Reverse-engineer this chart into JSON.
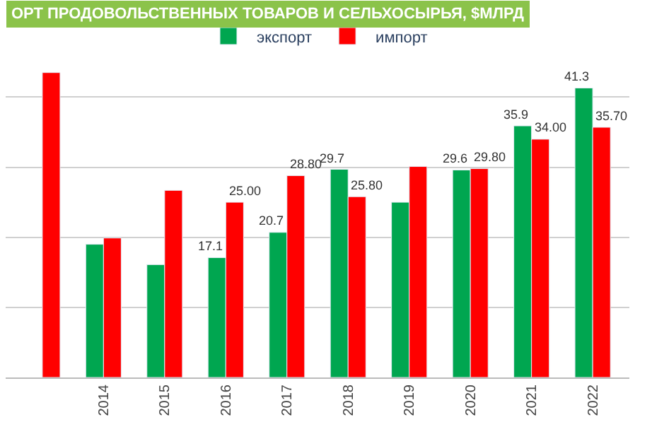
{
  "chart_data": {
    "type": "bar",
    "title": "ОРТ ПРОДОВОЛЬСТВЕННЫХ ТОВАРОВ И СЕЛЬХОСЫРЬЯ, $МЛРД",
    "legend": "top",
    "grid": "y",
    "tick_labels": "x",
    "categories": [
      null,
      "2014",
      "2015",
      "2016",
      "2017",
      "2018",
      "2019",
      "2020",
      "2021",
      "2022"
    ],
    "series": [
      {
        "name": "экспорт",
        "color": "#00a650",
        "values": [
          null,
          19.0,
          16.1,
          17.1,
          20.7,
          29.7,
          25.0,
          29.6,
          35.9,
          41.3
        ],
        "value_labels": [
          null,
          null,
          null,
          "17.1",
          "20.7",
          "29.7",
          null,
          "29.6",
          "35.9",
          "41.3"
        ]
      },
      {
        "name": "импорт",
        "color": "#ff0000",
        "values": [
          43.5,
          19.9,
          26.7,
          25.0,
          28.8,
          25.8,
          30.1,
          29.8,
          34.0,
          35.7
        ],
        "value_labels": [
          null,
          null,
          null,
          "25.00",
          "28.80",
          "25.80",
          null,
          "29.80",
          "34.00",
          "35.70"
        ]
      }
    ]
  }
}
